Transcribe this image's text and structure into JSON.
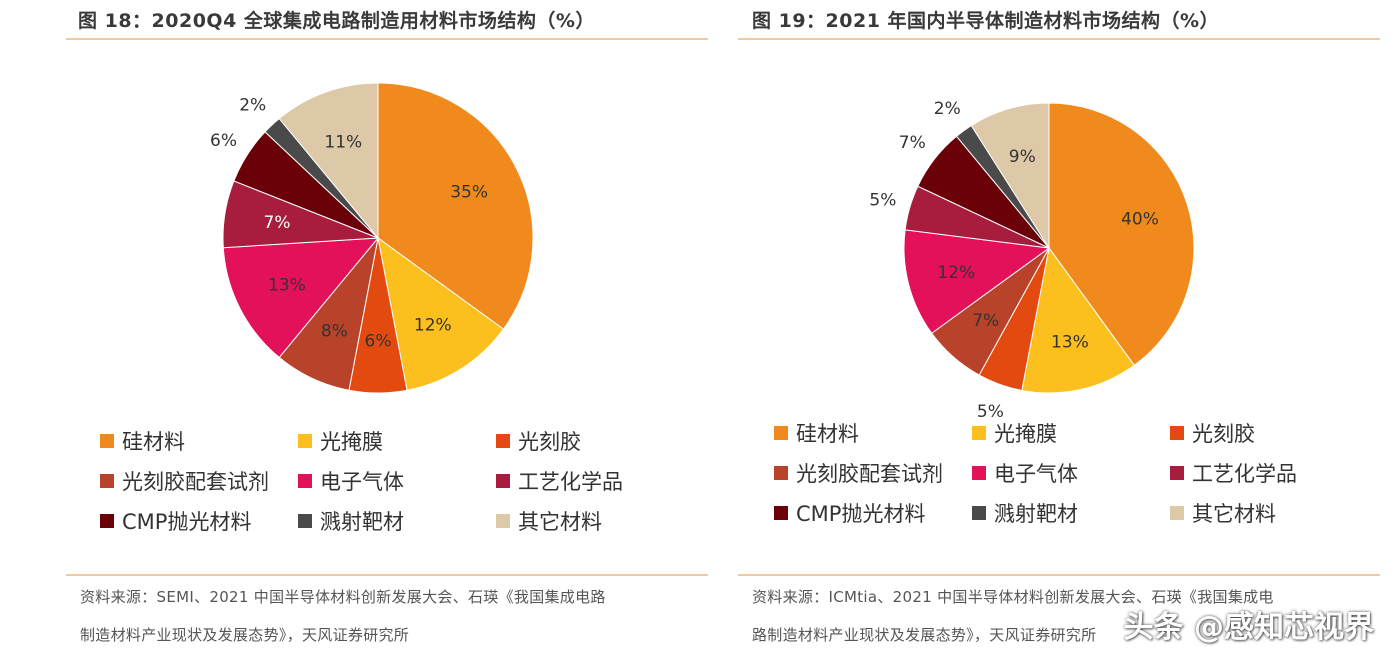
{
  "charts": [
    {
      "title": "图 18：2020Q4 全球集成电路制造用材料市场结构（%）",
      "source_line1": "资料来源：SEMI、2021 中国半导体材料创新发展大会、石瑛《我国集成电路",
      "source_line2": "制造材料产业现状及发展态势》，天风证券研究所"
    },
    {
      "title": "图 19：2021 年国内半导体制造材料市场结构（%）",
      "source_line1": "资料来源：ICMtia、2021 中国半导体材料创新发展大会、石瑛《我国集成电",
      "source_line2": "路制造材料产业现状及发展态势》，天风证券研究所"
    }
  ],
  "watermark": "头条 @感知芯视界",
  "colors": [
    "#f08a1c",
    "#fbbf1e",
    "#e34a10",
    "#b8422a",
    "#e3105a",
    "#a81c3e",
    "#6a0008",
    "#4a4a4a",
    "#ddc8a8"
  ],
  "label_colors": [
    "#333333",
    "#333333",
    "#333333",
    "#333333",
    "#333333",
    "#ffffff",
    "#ffffff",
    "#333333",
    "#333333"
  ],
  "chart_data": [
    {
      "type": "pie",
      "title": "图 18：2020Q4 全球集成电路制造用材料市场结构（%）",
      "categories": [
        "硅材料",
        "光掩膜",
        "光刻胶",
        "光刻胶配套试剂",
        "电子气体",
        "工艺化学品",
        "CMP抛光材料",
        "溅射靶材",
        "其它材料"
      ],
      "values": [
        35,
        12,
        6,
        8,
        13,
        7,
        6,
        2,
        11
      ],
      "labels": [
        "35%",
        "12%",
        "6%",
        "8%",
        "13%",
        "7%",
        "6%",
        "2%",
        "11%"
      ],
      "legend": "bottom"
    },
    {
      "type": "pie",
      "title": "图 19：2021 年国内半导体制造材料市场结构（%）",
      "categories": [
        "硅材料",
        "光掩膜",
        "光刻胶",
        "光刻胶配套试剂",
        "电子气体",
        "工艺化学品",
        "CMP抛光材料",
        "溅射靶材",
        "其它材料"
      ],
      "values": [
        40,
        13,
        5,
        7,
        12,
        5,
        7,
        2,
        9
      ],
      "labels": [
        "40%",
        "13%",
        "5%",
        "7%",
        "12%",
        "5%",
        "7%",
        "2%",
        "9%"
      ],
      "legend": "bottom"
    }
  ]
}
